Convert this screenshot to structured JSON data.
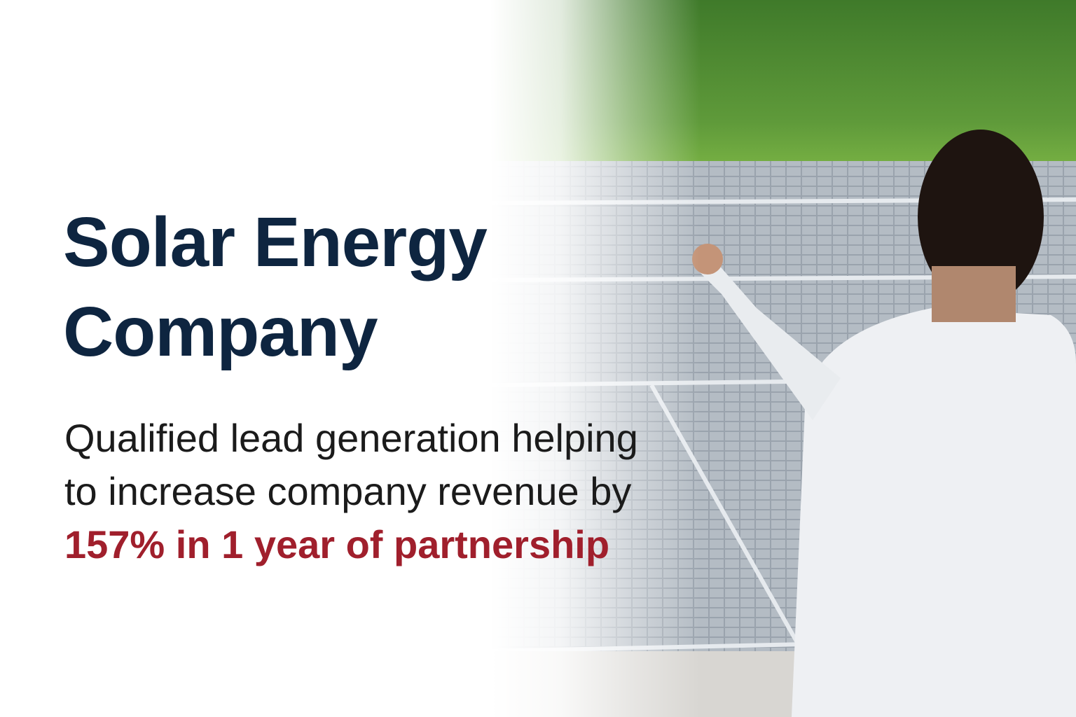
{
  "headline": {
    "line1": "Solar Energy",
    "line2": "Company"
  },
  "description": {
    "text": "Qualified lead generation helping to increase company revenue by ",
    "highlight": "157% in 1 year of partnership"
  },
  "colors": {
    "headline": "#0e2540",
    "highlight": "#a01f2c",
    "body": "#1b1b1b"
  },
  "image": {
    "subject": "person-pointing-at-solar-panels"
  }
}
